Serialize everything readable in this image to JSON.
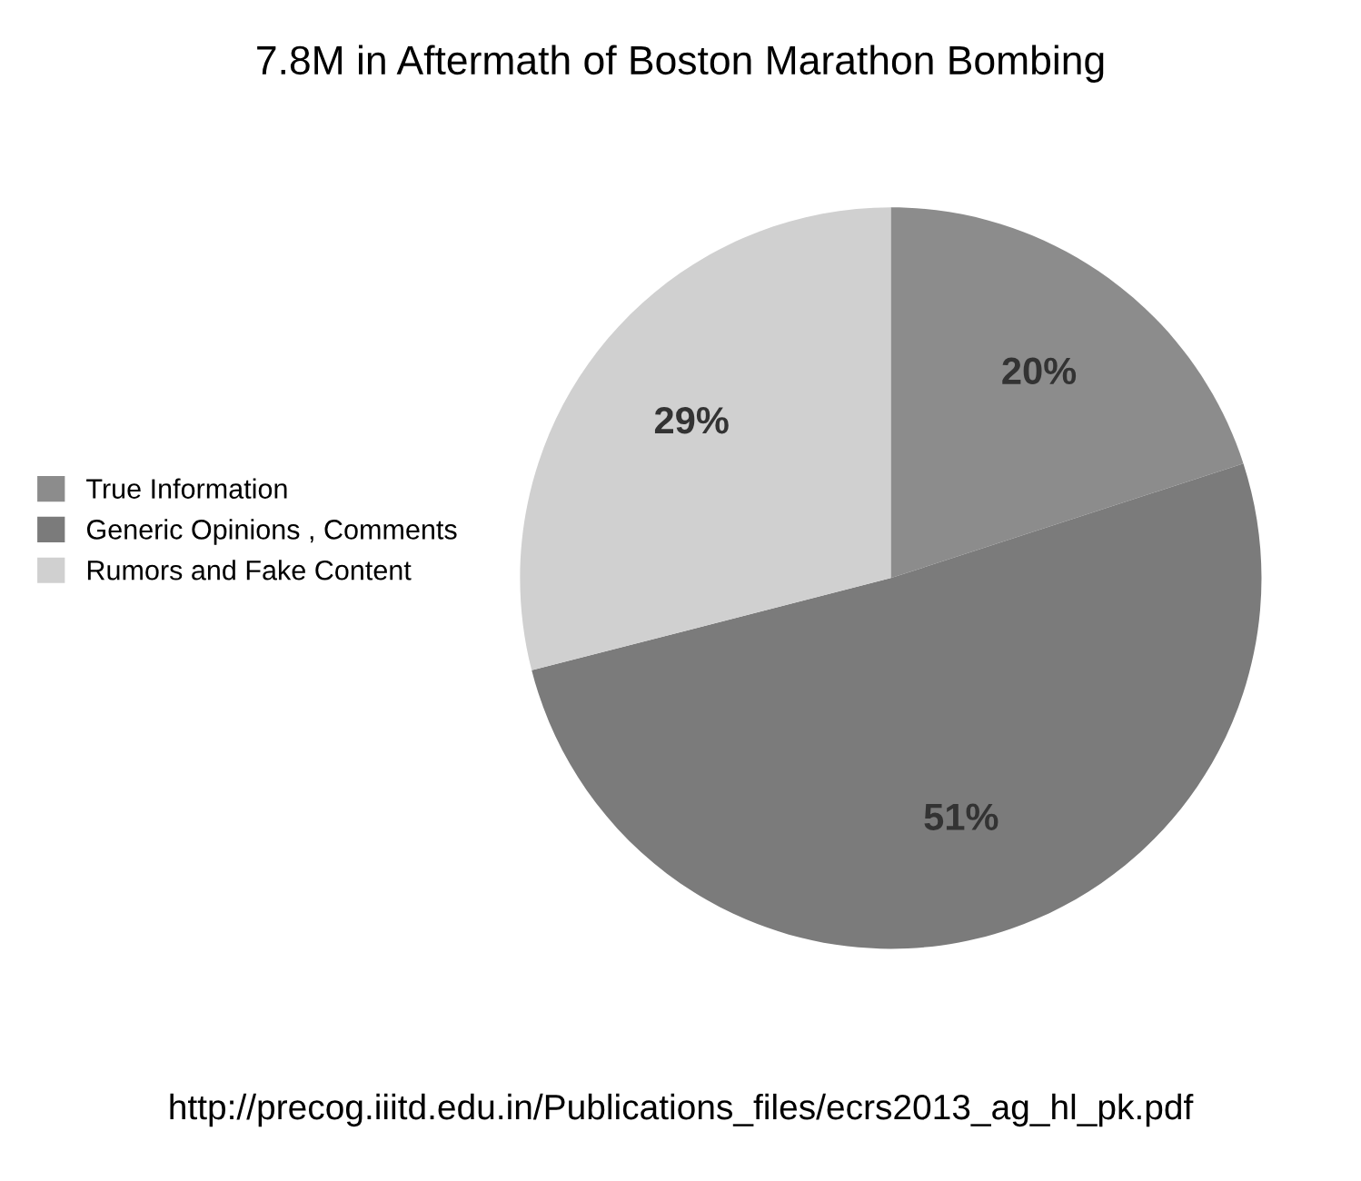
{
  "chart_data": {
    "type": "pie",
    "title": "7.8M in Aftermath of Boston Marathon Bombing",
    "categories": [
      "True Information",
      "Generic Opinions , Comments",
      "Rumors and Fake Content"
    ],
    "values": [
      20,
      51,
      29
    ],
    "colors": [
      "#8c8c8c",
      "#7b7b7b",
      "#d0d0d0"
    ],
    "value_labels": [
      "20%",
      "51%",
      "29%"
    ],
    "legend": "left",
    "annotations": [
      "http://precog.iiitd.edu.in/Publications_files/ecrs2013_ag_hl_pk.pdf"
    ]
  }
}
